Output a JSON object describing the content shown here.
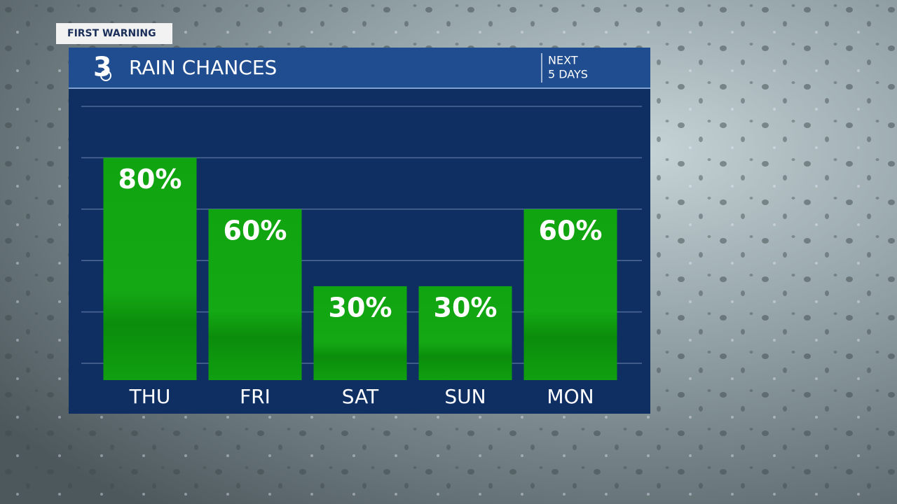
{
  "badge": "FIRST WARNING",
  "logo": "3",
  "period": [
    "NEXT",
    "5 DAYS"
  ],
  "chart_data": {
    "type": "bar",
    "title": "RAIN CHANCES",
    "categories": [
      "THU",
      "FRI",
      "SAT",
      "SUN",
      "MON"
    ],
    "values": [
      80,
      60,
      30,
      30,
      60
    ],
    "value_labels": [
      "80%",
      "60%",
      "30%",
      "30%",
      "60%"
    ],
    "color": "#12a012",
    "ylim": [
      0,
      100
    ],
    "yticks": [
      0,
      20,
      40,
      60,
      80,
      100
    ],
    "grid": true
  }
}
